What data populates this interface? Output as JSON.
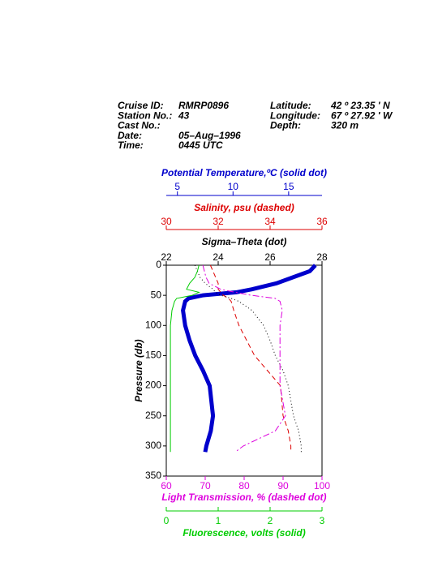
{
  "chart_data": {
    "type": "line",
    "header": [
      {
        "label": "Cruise ID:",
        "value": "RMRP0896"
      },
      {
        "label": "Station No.:",
        "value": "43"
      },
      {
        "label": "Cast No.:"
      },
      {
        "label": "Date:",
        "value": "05–Aug–1996"
      },
      {
        "label": "Time:",
        "value": "0445 UTC"
      },
      {
        "label": "Latitude:",
        "value": "42 º  23.35 ' N"
      },
      {
        "label": "Longitude:",
        "value": "67 º  27.92 ' W"
      },
      {
        "label": "Depth:",
        "value": "320 m"
      }
    ],
    "ylabel": "Pressure (db)",
    "ylim": [
      0,
      350
    ],
    "yticks": [
      0,
      50,
      100,
      150,
      200,
      250,
      300,
      350
    ],
    "y_inverted": true,
    "y": [
      0,
      10,
      20,
      30,
      40,
      45,
      50,
      55,
      60,
      75,
      100,
      125,
      150,
      175,
      200,
      250,
      275,
      300,
      310
    ],
    "series": [
      {
        "name": "Potential Temperature,ºC (solid dot)",
        "color": "#0000cc",
        "style": "solid-dot",
        "xlim": [
          4,
          18
        ],
        "xticks": [
          5,
          10,
          15
        ],
        "values": [
          17.4,
          16.9,
          15.4,
          13.9,
          11.7,
          10.3,
          7.3,
          6.0,
          5.7,
          5.5,
          5.7,
          6.1,
          6.6,
          7.3,
          7.9,
          8.2,
          8.0,
          7.6,
          7.5
        ]
      },
      {
        "name": "Salinity, psu  (dashed)",
        "color": "#dd0000",
        "style": "dashed",
        "xlim": [
          30,
          36
        ],
        "xticks": [
          30,
          32,
          34,
          36
        ],
        "values": [
          31.7,
          31.8,
          31.9,
          32.0,
          32.0,
          32.1,
          32.2,
          32.4,
          32.5,
          32.6,
          32.8,
          33.1,
          33.4,
          33.9,
          34.4,
          34.5,
          34.7,
          34.8,
          34.8
        ]
      },
      {
        "name": "Sigma–Theta (dot)",
        "color": "#000000",
        "style": "dot",
        "xlim": [
          22,
          28
        ],
        "xticks": [
          22,
          24,
          26,
          28
        ],
        "values": [
          23.1,
          23.2,
          23.3,
          23.5,
          23.8,
          23.9,
          24.1,
          24.5,
          24.8,
          25.3,
          25.75,
          26.0,
          26.2,
          26.5,
          26.7,
          26.9,
          27.1,
          27.2,
          27.2
        ]
      },
      {
        "name": "Light Transmission, % (dashed dot)",
        "color": "#dd00dd",
        "style": "dash-dot",
        "xlim": [
          60,
          100
        ],
        "xticks": [
          60,
          70,
          80,
          90,
          100
        ],
        "values": [
          69.4,
          69.8,
          70.2,
          71,
          74,
          77.7,
          81.9,
          88,
          89.2,
          89.8,
          89.2,
          89.2,
          89.2,
          89.2,
          89.2,
          90.6,
          88,
          79.8,
          77.7
        ]
      },
      {
        "name": "Fluorescence, volts (solid)",
        "color": "#00cc00",
        "style": "solid",
        "xlim": [
          0,
          3
        ],
        "xticks": [
          0,
          1,
          2,
          3
        ],
        "values": [
          0.63,
          0.6,
          0.55,
          0.45,
          0.39,
          0.63,
          0.5,
          0.2,
          0.16,
          0.11,
          0.08,
          0.08,
          0.08,
          0.08,
          0.08,
          0.08,
          0.08,
          0.08,
          0.08
        ]
      }
    ]
  }
}
